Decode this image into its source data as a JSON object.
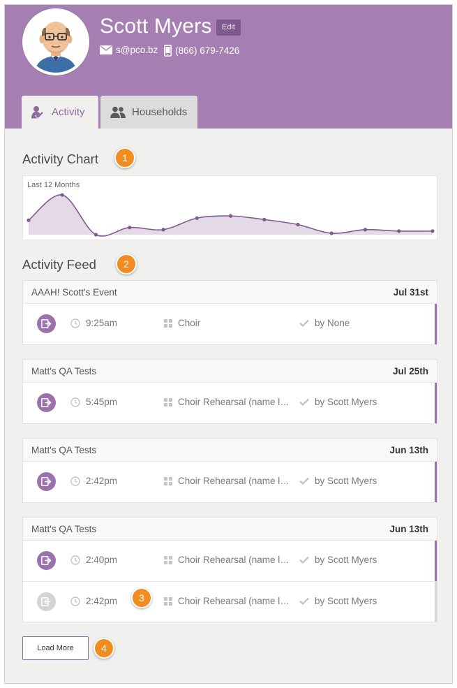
{
  "profile": {
    "name": "Scott Myers",
    "edit_label": "Edit",
    "email": "s@pco.bz",
    "phone": "(866) 679-7426"
  },
  "tabs": [
    {
      "label": "Activity",
      "icon": "activity-check-icon",
      "active": true
    },
    {
      "label": "Households",
      "icon": "people-icon",
      "active": false
    }
  ],
  "activity_chart": {
    "title": "Activity Chart",
    "callout": "1",
    "chart_data": {
      "type": "area",
      "subtitle": "Last 12 Months",
      "values": [
        2.0,
        5.5,
        0.0,
        1.0,
        0.7,
        2.3,
        2.6,
        2.1,
        1.4,
        0.2,
        0.7,
        0.5,
        0.5
      ],
      "ylim": [
        0,
        6
      ],
      "grid": false,
      "color": "#7e5a8e",
      "fill": "#e3dae6"
    }
  },
  "activity_feed": {
    "title": "Activity Feed",
    "callout": "2",
    "items": [
      {
        "event": "AAAH! Scott's Event",
        "date": "Jul 31st",
        "rows": [
          {
            "time": "9:25am",
            "group": "Choir",
            "by": "by None",
            "muted": false
          }
        ]
      },
      {
        "event": "Matt's QA Tests",
        "date": "Jul 25th",
        "rows": [
          {
            "time": "5:45pm",
            "group": "Choir Rehearsal (name la...",
            "by": "by Scott Myers",
            "muted": false
          }
        ]
      },
      {
        "event": "Matt's QA Tests",
        "date": "Jun 13th",
        "rows": [
          {
            "time": "2:42pm",
            "group": "Choir Rehearsal (name la...",
            "by": "by Scott Myers",
            "muted": false
          }
        ]
      },
      {
        "event": "Matt's QA Tests",
        "date": "Jun 13th",
        "rows": [
          {
            "time": "2:40pm",
            "group": "Choir Rehearsal (name la...",
            "by": "by Scott Myers",
            "muted": false
          },
          {
            "time": "2:42pm",
            "group": "Choir Rehearsal (name la...",
            "by": "by Scott Myers",
            "muted": true
          }
        ]
      }
    ],
    "row_callout": "3"
  },
  "load_more": {
    "label": "Load More",
    "callout": "4"
  },
  "colors": {
    "header": "#a57fb1",
    "accent": "#9b72ab",
    "callout": "#f28c1e"
  }
}
